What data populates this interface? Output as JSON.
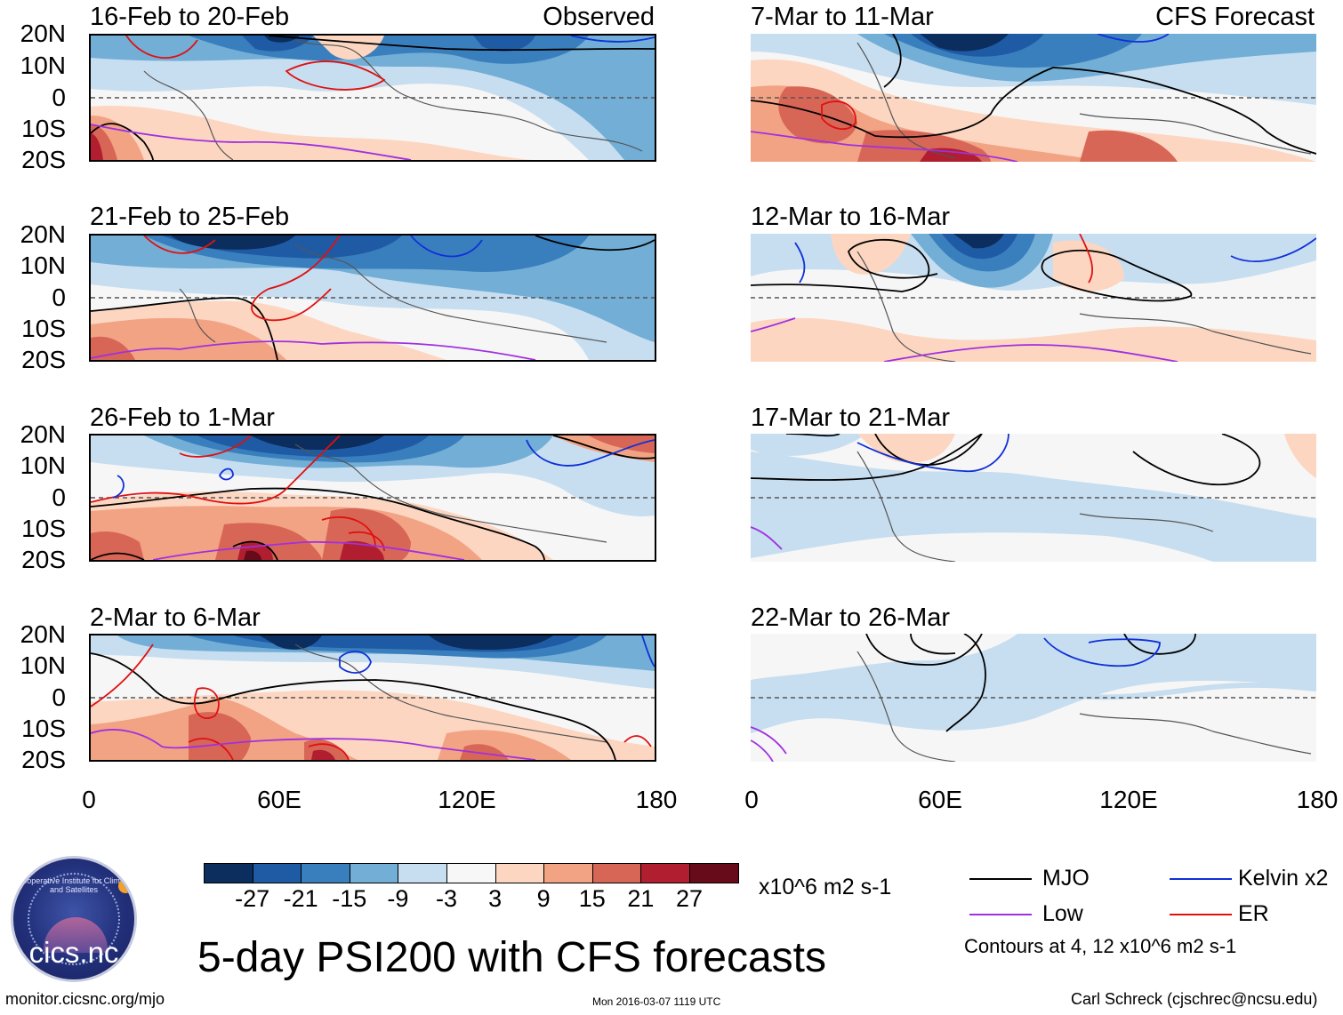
{
  "header": {
    "left_label": "Observed",
    "right_label": "CFS Forecast"
  },
  "panels_left": [
    {
      "title": "16-Feb to 20-Feb"
    },
    {
      "title": "21-Feb to 25-Feb"
    },
    {
      "title": "26-Feb to 1-Mar"
    },
    {
      "title": "2-Mar to 6-Mar"
    }
  ],
  "panels_right": [
    {
      "title": "7-Mar to 11-Mar"
    },
    {
      "title": "12-Mar to 16-Mar"
    },
    {
      "title": "17-Mar to 21-Mar"
    },
    {
      "title": "22-Mar to 26-Mar"
    }
  ],
  "lat_labels": [
    "20N",
    "10N",
    "0",
    "10S",
    "20S"
  ],
  "lon_labels": [
    "0",
    "60E",
    "120E",
    "180"
  ],
  "colorbar": {
    "ticks": [
      "-27",
      "-21",
      "-15",
      "-9",
      "-3",
      "3",
      "9",
      "15",
      "21",
      "27"
    ],
    "colors": [
      "#0b2e5e",
      "#1f5ba5",
      "#3a7fbd",
      "#72aed6",
      "#c7def0",
      "#f7f7f7",
      "#fcd6c1",
      "#f2a384",
      "#d86657",
      "#b01e2f",
      "#670a19"
    ],
    "units": "x10^6 m2 s-1"
  },
  "legend": {
    "items": [
      {
        "label": "MJO",
        "color": "#000000"
      },
      {
        "label": "Kelvin x2",
        "color": "#1030d8"
      },
      {
        "label": "Low",
        "color": "#a030e0"
      },
      {
        "label": "ER",
        "color": "#e01010"
      }
    ],
    "contours_note": "Contours at 4, 12 x10^6 m2 s-1"
  },
  "title": "5-day PSI200 with CFS forecasts",
  "footer": {
    "website": "monitor.cicsnc.org/mjo",
    "timestamp": "Mon 2016-03-07 1119 UTC",
    "author": "Carl Schreck (cjschrec@ncsu.edu)"
  },
  "logo": {
    "name": "cics.nc",
    "arc_text": "Cooperative Institute for Climate and Satellites"
  }
}
